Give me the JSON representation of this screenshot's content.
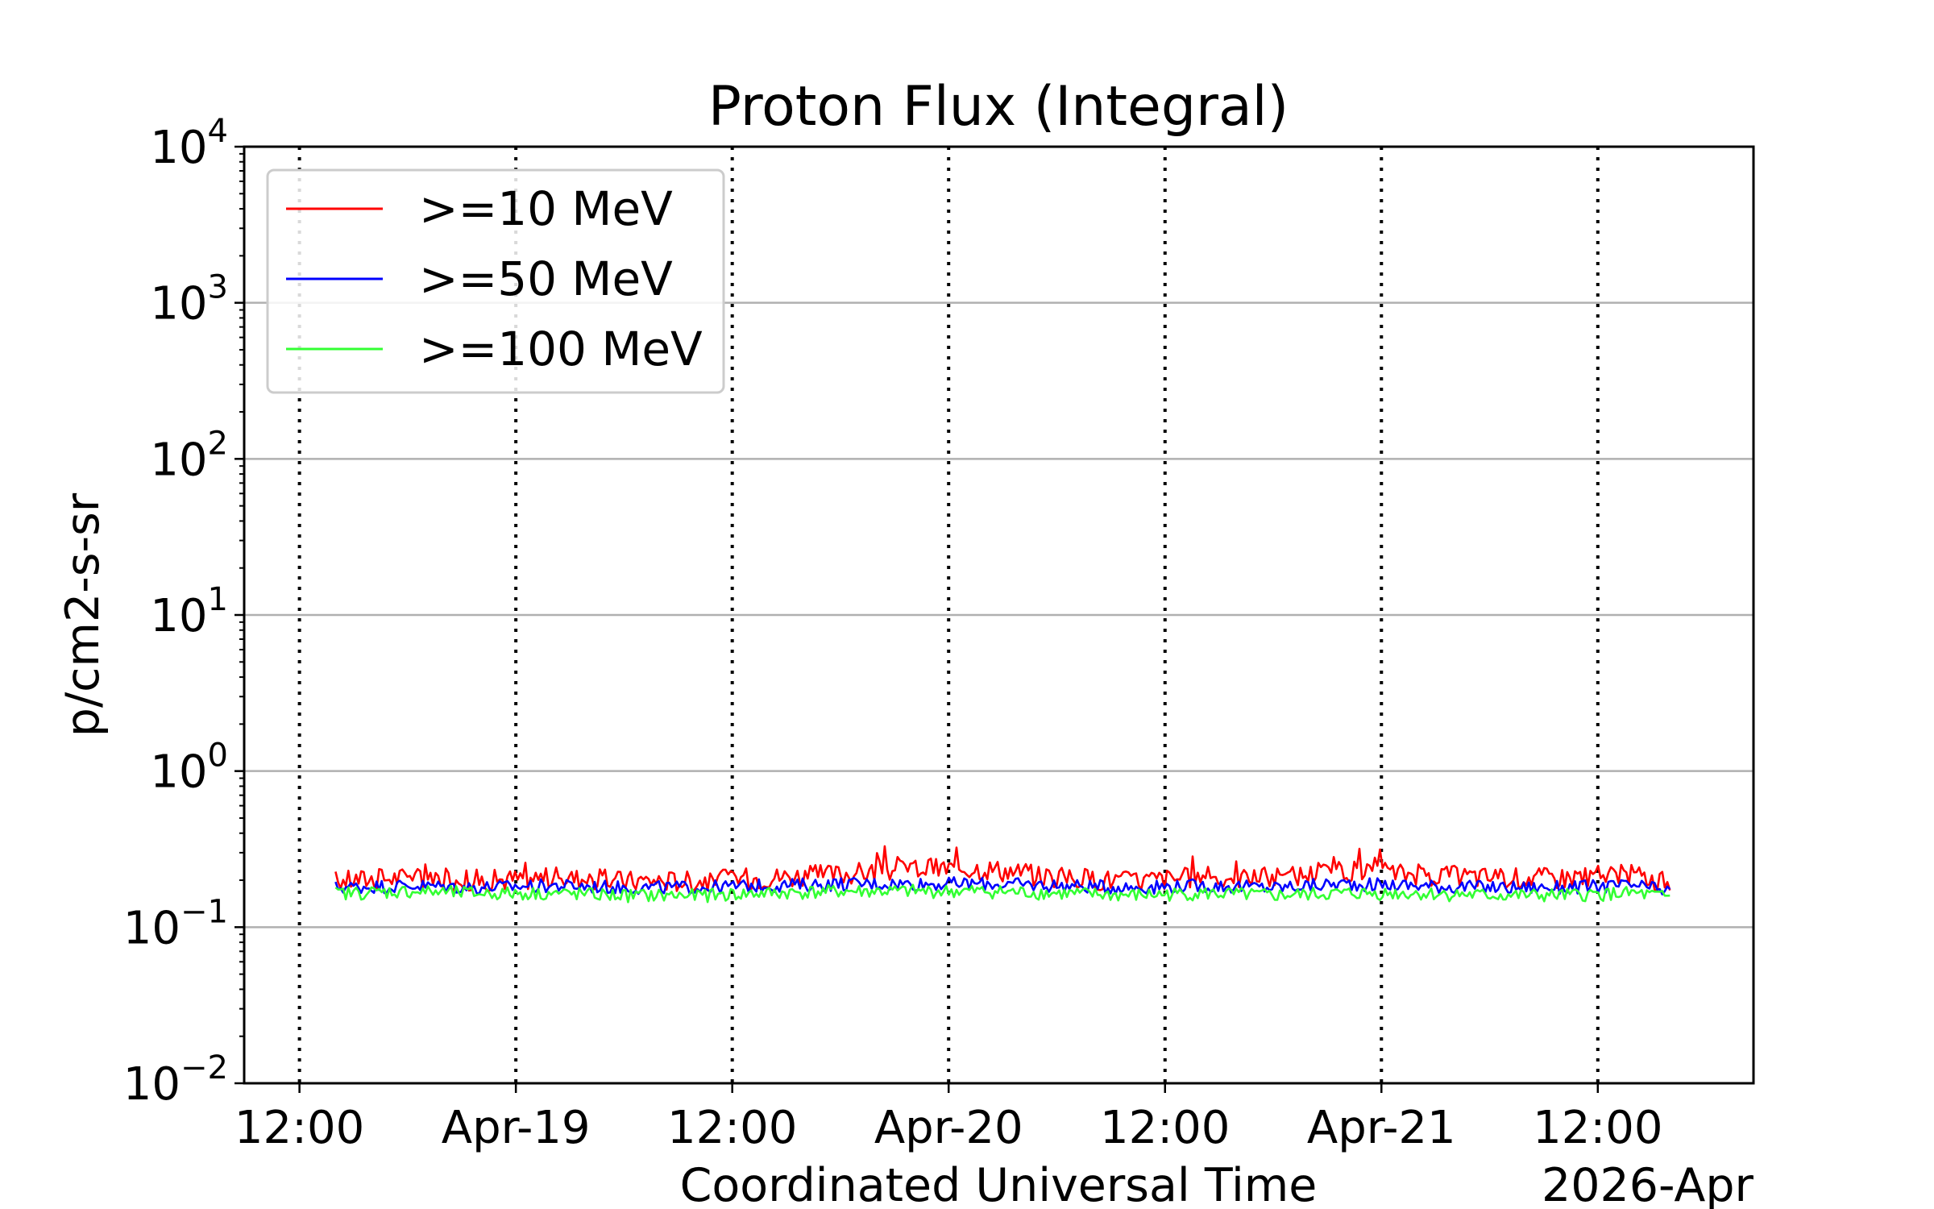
{
  "chart_data": {
    "type": "line",
    "title": "Proton Flux (Integral)",
    "xlabel": "Coordinated Universal Time",
    "ylabel": "p/cm2-s-sr",
    "x_offset_label": "2026-Apr",
    "y_scale": "log",
    "ylim": [
      0.01,
      10000
    ],
    "y_ticks": [
      {
        "value": 0.01,
        "base": "10",
        "exp": "−2"
      },
      {
        "value": 0.1,
        "base": "10",
        "exp": "−1"
      },
      {
        "value": 1,
        "base": "10",
        "exp": "0"
      },
      {
        "value": 10,
        "base": "10",
        "exp": "1"
      },
      {
        "value": 100,
        "base": "10",
        "exp": "2"
      },
      {
        "value": 1000,
        "base": "10",
        "exp": "3"
      },
      {
        "value": 10000,
        "base": "10",
        "exp": "4"
      }
    ],
    "xlim": [
      "2026-04-18 08:56",
      "2026-04-21 20:38"
    ],
    "x_ticks": [
      {
        "value": "2026-04-18 12:00",
        "label": "12:00"
      },
      {
        "value": "2026-04-19 00:00",
        "label": "Apr-19"
      },
      {
        "value": "2026-04-19 12:00",
        "label": "12:00"
      },
      {
        "value": "2026-04-20 00:00",
        "label": "Apr-20"
      },
      {
        "value": "2026-04-20 12:00",
        "label": "12:00"
      },
      {
        "value": "2026-04-21 00:00",
        "label": "Apr-21"
      },
      {
        "value": "2026-04-21 12:00",
        "label": "12:00"
      }
    ],
    "x_grid": "dotted vertical lines at each tick",
    "y_grid": "solid light gray at each decade",
    "legend": {
      "position": "top-left"
    },
    "series": [
      {
        "name": ">=10 MeV",
        "color": "#ff0000",
        "x": [
          "2026-04-18 14:00",
          "2026-04-18 18:00",
          "2026-04-18 22:00",
          "2026-04-19 02:00",
          "2026-04-19 06:00",
          "2026-04-19 10:00",
          "2026-04-19 14:00",
          "2026-04-19 18:00",
          "2026-04-19 22:00",
          "2026-04-20 02:00",
          "2026-04-20 06:00",
          "2026-04-20 10:00",
          "2026-04-20 14:00",
          "2026-04-20 18:00",
          "2026-04-20 22:00",
          "2026-04-21 02:00",
          "2026-04-21 06:00",
          "2026-04-21 10:00",
          "2026-04-21 14:00",
          "2026-04-21 16:00"
        ],
        "y": [
          0.2,
          0.21,
          0.2,
          0.21,
          0.2,
          0.2,
          0.21,
          0.22,
          0.24,
          0.24,
          0.21,
          0.2,
          0.21,
          0.21,
          0.23,
          0.22,
          0.21,
          0.21,
          0.22,
          0.19
        ]
      },
      {
        "name": ">=50 MeV",
        "color": "#0000ff",
        "x": [
          "2026-04-18 14:00",
          "2026-04-18 18:00",
          "2026-04-18 22:00",
          "2026-04-19 02:00",
          "2026-04-19 06:00",
          "2026-04-19 10:00",
          "2026-04-19 14:00",
          "2026-04-19 18:00",
          "2026-04-19 22:00",
          "2026-04-20 02:00",
          "2026-04-20 06:00",
          "2026-04-20 10:00",
          "2026-04-20 14:00",
          "2026-04-20 18:00",
          "2026-04-20 22:00",
          "2026-04-21 02:00",
          "2026-04-21 06:00",
          "2026-04-21 10:00",
          "2026-04-21 14:00",
          "2026-04-21 16:00"
        ],
        "y": [
          0.18,
          0.185,
          0.18,
          0.185,
          0.18,
          0.18,
          0.185,
          0.19,
          0.19,
          0.19,
          0.185,
          0.18,
          0.185,
          0.18,
          0.19,
          0.185,
          0.18,
          0.18,
          0.185,
          0.17
        ]
      },
      {
        "name": ">=100 MeV",
        "color": "#33ff33",
        "x": [
          "2026-04-18 14:00",
          "2026-04-18 18:00",
          "2026-04-18 22:00",
          "2026-04-19 02:00",
          "2026-04-19 06:00",
          "2026-04-19 10:00",
          "2026-04-19 14:00",
          "2026-04-19 18:00",
          "2026-04-19 22:00",
          "2026-04-20 02:00",
          "2026-04-20 06:00",
          "2026-04-20 10:00",
          "2026-04-20 14:00",
          "2026-04-20 18:00",
          "2026-04-20 22:00",
          "2026-04-21 02:00",
          "2026-04-21 06:00",
          "2026-04-21 10:00",
          "2026-04-21 14:00",
          "2026-04-21 16:00"
        ],
        "y": [
          0.165,
          0.17,
          0.165,
          0.165,
          0.16,
          0.16,
          0.165,
          0.17,
          0.17,
          0.17,
          0.165,
          0.16,
          0.165,
          0.16,
          0.165,
          0.165,
          0.16,
          0.16,
          0.165,
          0.155
        ]
      }
    ]
  }
}
